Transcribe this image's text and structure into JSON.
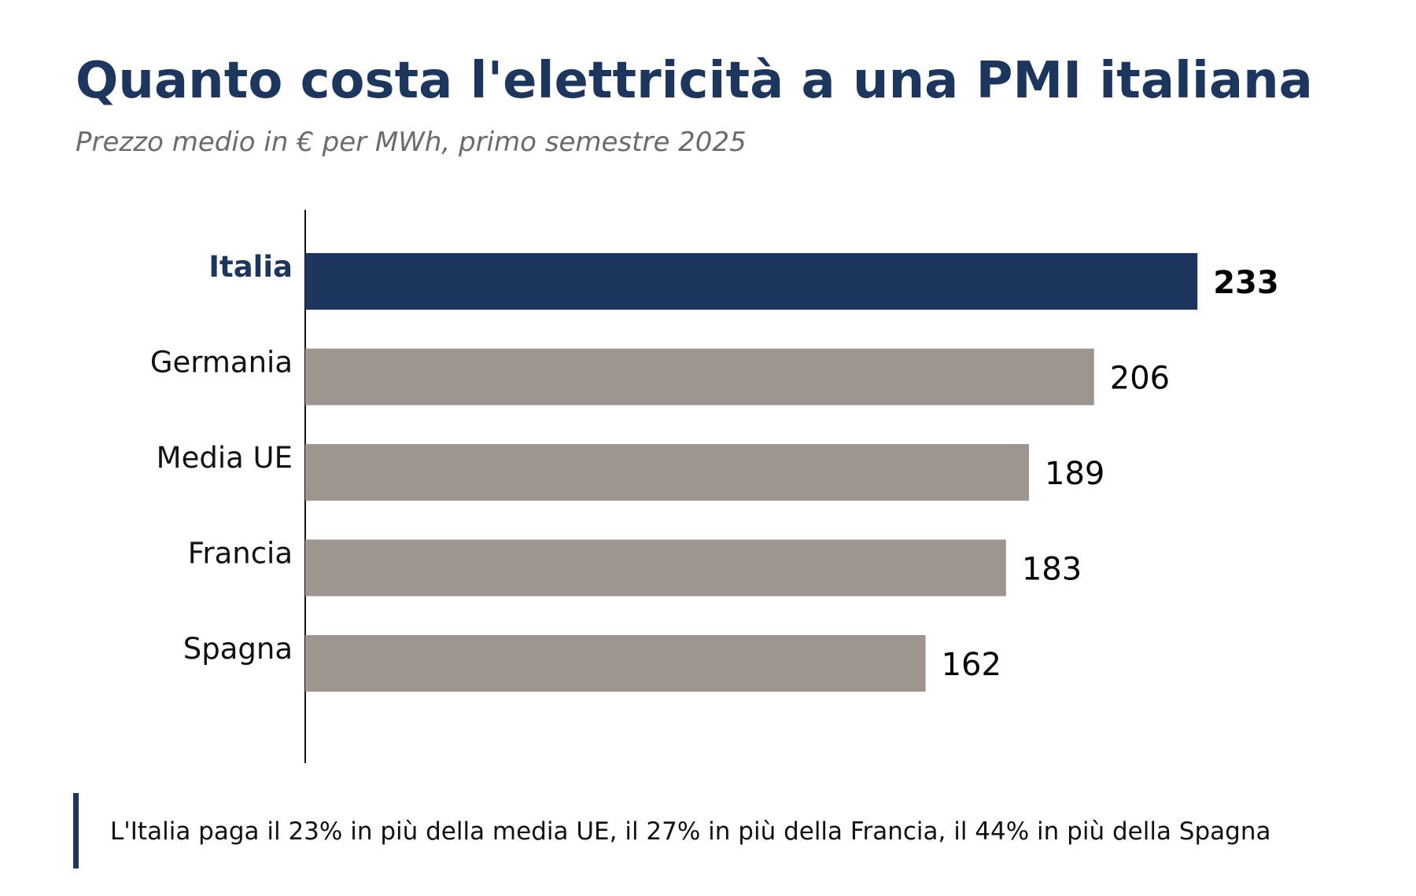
{
  "chart_data": {
    "type": "barh",
    "title": "Quanto costa l'elettricità a una PMI italiana",
    "subtitle": "Prezzo medio in € per MWh, primo semestre 2025",
    "categories": [
      "Italia",
      "Germania",
      "Media UE",
      "Francia",
      "Spagna"
    ],
    "values": [
      233,
      206,
      189,
      183,
      162
    ],
    "colors": [
      "#1c365e",
      "#9d958f",
      "#9d958f",
      "#9d958f",
      "#9d958f"
    ],
    "highlight": "Italia",
    "xlim": [
      0,
      280
    ],
    "note": "L'Italia paga il 23% in più della media UE, il 27% in più della Francia, il 44% in più della Spagna"
  }
}
